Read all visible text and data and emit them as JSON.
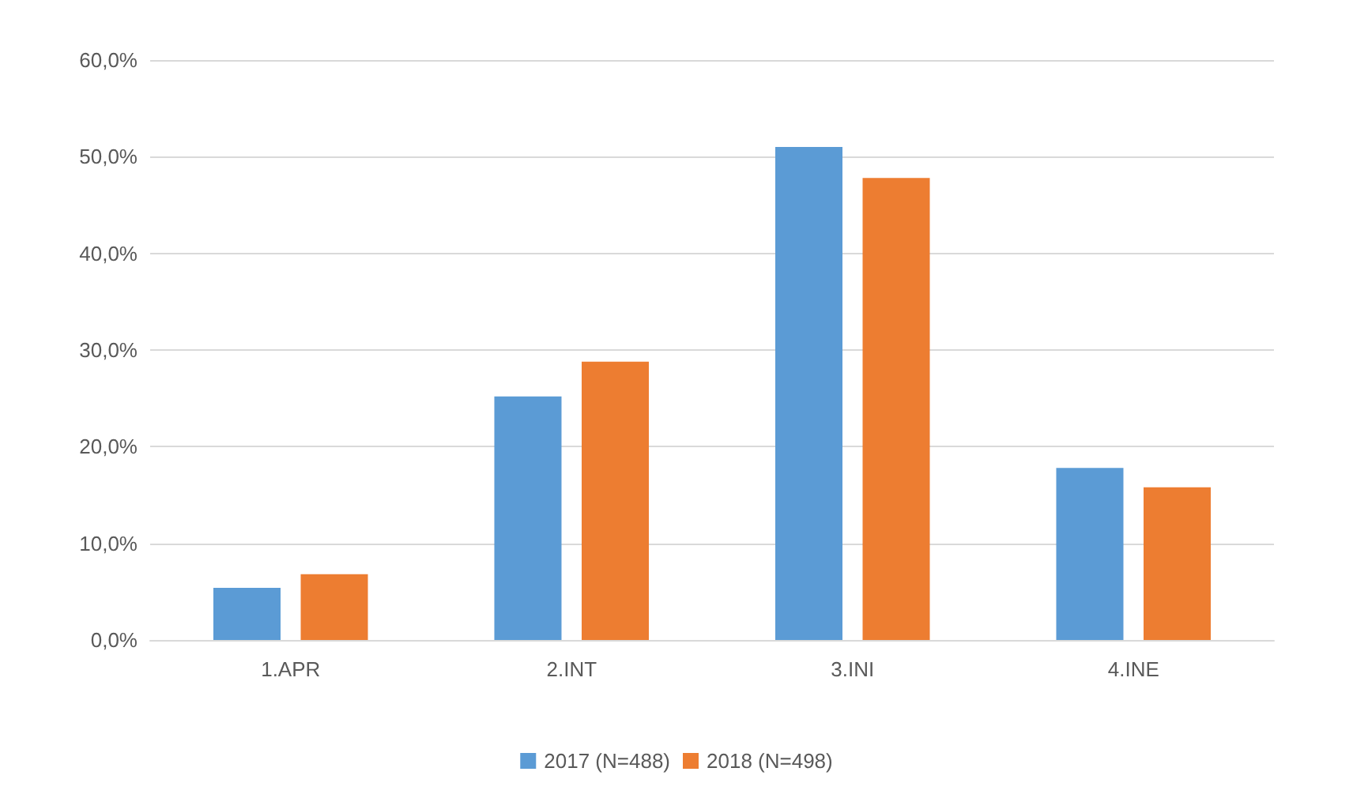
{
  "chart_data": {
    "type": "bar",
    "categories": [
      "1.APR",
      "2.INT",
      "3.INI",
      "4.INE"
    ],
    "series": [
      {
        "name": "2017 (N=488)",
        "color": "#5b9bd5",
        "values": [
          5.4,
          25.2,
          51.0,
          17.8
        ]
      },
      {
        "name": "2018 (N=498)",
        "color": "#ed7d31",
        "values": [
          6.8,
          28.8,
          47.8,
          15.8
        ]
      }
    ],
    "ylim": [
      0,
      60
    ],
    "yticks": [
      {
        "value": 0,
        "label": "0,0%"
      },
      {
        "value": 10,
        "label": "10,0%"
      },
      {
        "value": 20,
        "label": "20,0%"
      },
      {
        "value": 30,
        "label": "30,0%"
      },
      {
        "value": 40,
        "label": "40,0%"
      },
      {
        "value": 50,
        "label": "50,0%"
      },
      {
        "value": 60,
        "label": "60,0%"
      }
    ],
    "grid": "y",
    "legend": "bottom"
  }
}
